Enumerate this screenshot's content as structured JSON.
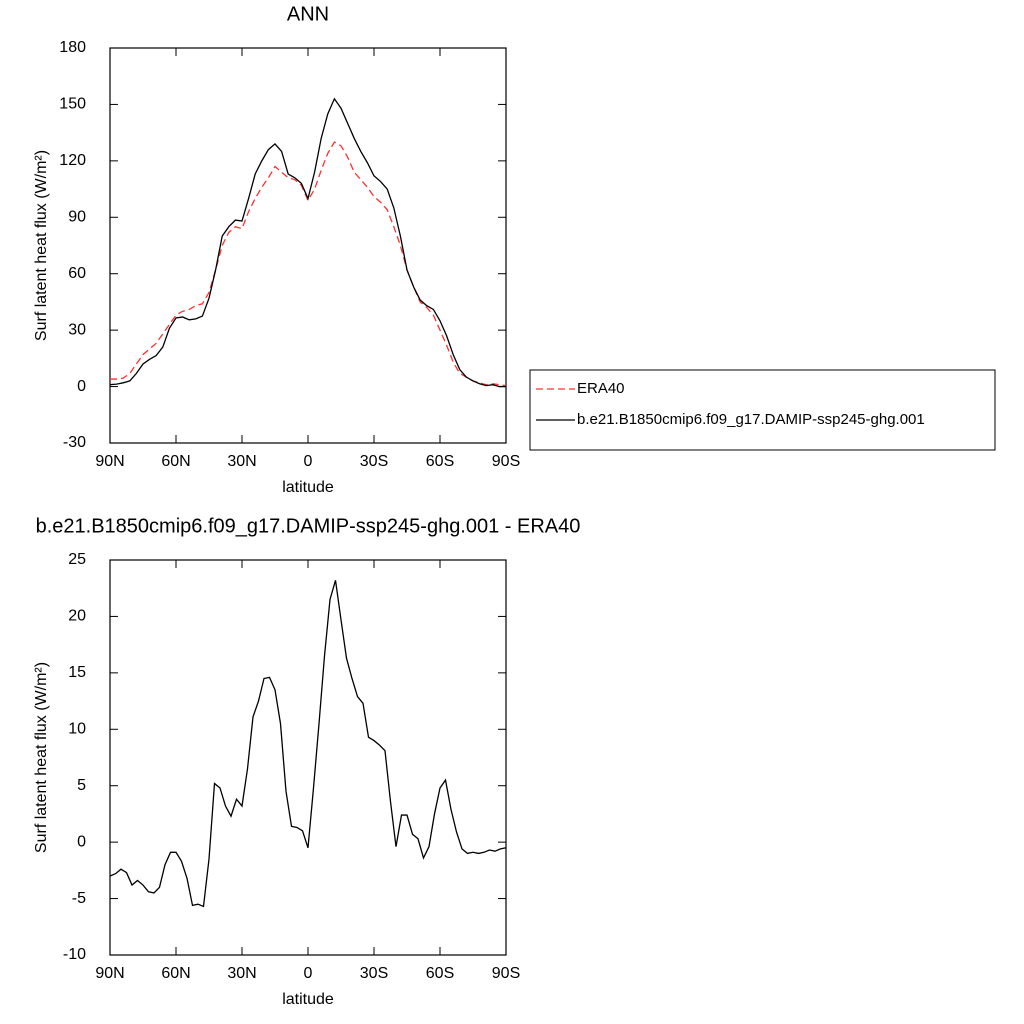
{
  "chart_data": [
    {
      "type": "line",
      "title": "ANN",
      "xlabel": "latitude",
      "ylabel": "Surf latent heat flux (W/m²)",
      "x": [
        90,
        87,
        84,
        81,
        78,
        75,
        72,
        69,
        66,
        63,
        60,
        57,
        54,
        51,
        48,
        45,
        42,
        39,
        36,
        33,
        30,
        27,
        24,
        21,
        18,
        15,
        12,
        9,
        6,
        3,
        0,
        -3,
        -6,
        -9,
        -12,
        -15,
        -18,
        -21,
        -24,
        -27,
        -30,
        -33,
        -36,
        -39,
        -42,
        -45,
        -48,
        -51,
        -54,
        -57,
        -60,
        -63,
        -66,
        -69,
        -72,
        -75,
        -78,
        -81,
        -84,
        -87,
        -90
      ],
      "series": [
        {
          "name": "ERA40",
          "color": "#ff3030",
          "linestyle": "dashed",
          "values": [
            4,
            4,
            4.5,
            7,
            12,
            17,
            20,
            23,
            28,
            33,
            38,
            40,
            41,
            43,
            44,
            50,
            62,
            75,
            82,
            85,
            84,
            93,
            100,
            106,
            111,
            117,
            114,
            111,
            110,
            107,
            99,
            105,
            115,
            124,
            130,
            128,
            122,
            114,
            110,
            106,
            101,
            98,
            94,
            85,
            75,
            62,
            53,
            45,
            42,
            38,
            30,
            22,
            13,
            7,
            5,
            3,
            2,
            1,
            1.5,
            1,
            0.5
          ]
        },
        {
          "name": "b.e21.B1850cmip6.f09_g17.DAMIP-ssp245-ghg.001",
          "color": "#000000",
          "linestyle": "solid",
          "values": [
            1,
            1.3,
            2,
            3,
            7,
            12,
            14.5,
            16.5,
            21,
            31,
            36.5,
            37,
            35.5,
            36,
            37.5,
            47,
            62,
            80,
            85,
            88.5,
            88,
            100,
            113,
            120,
            126,
            129,
            125,
            113,
            111,
            108,
            100,
            114,
            132,
            145,
            153,
            148,
            140,
            132,
            125,
            119,
            112,
            109,
            105,
            95,
            80,
            62,
            53,
            46,
            43,
            41,
            35,
            27,
            17,
            9,
            5,
            3,
            1.5,
            0.5,
            1,
            0,
            0
          ]
        }
      ],
      "xlim": [
        90,
        -90
      ],
      "xticks": [
        {
          "value": 90,
          "label": "90N"
        },
        {
          "value": 60,
          "label": "60N"
        },
        {
          "value": 30,
          "label": "30N"
        },
        0,
        {
          "value": -30,
          "label": "30S"
        },
        {
          "value": -60,
          "label": "60S"
        },
        {
          "value": -90,
          "label": "90S"
        }
      ],
      "ylim": [
        -30,
        180
      ],
      "yticks": [
        -30,
        0,
        30,
        60,
        90,
        120,
        150,
        180
      ],
      "grid": false,
      "legend": "right"
    },
    {
      "type": "line",
      "title": "b.e21.B1850cmip6.f09_g17.DAMIP-ssp245-ghg.001 - ERA40",
      "xlabel": "latitude",
      "ylabel": "Surf latent heat flux (W/m²)",
      "x": [
        90,
        87.5,
        85,
        82.5,
        80,
        77.5,
        75,
        72.5,
        70,
        67.5,
        65,
        62.5,
        60,
        57.5,
        55,
        52.5,
        50,
        47.5,
        45,
        42.5,
        40,
        37.5,
        35,
        32.5,
        30,
        27.5,
        25,
        22.5,
        20,
        17.5,
        15,
        12.5,
        10,
        7.5,
        5,
        2.5,
        0,
        -2.5,
        -5,
        -7.5,
        -10,
        -12.5,
        -15,
        -17.5,
        -20,
        -22.5,
        -25,
        -27.5,
        -30,
        -32.5,
        -35,
        -37.5,
        -40,
        -42.5,
        -45,
        -47.5,
        -50,
        -52.5,
        -55,
        -57.5,
        -60,
        -62.5,
        -65,
        -67.5,
        -70,
        -72.5,
        -75,
        -77.5,
        -80,
        -82.5,
        -85,
        -87.5,
        -90
      ],
      "color": "#000000",
      "values": [
        -3,
        -2.8,
        -2.4,
        -2.7,
        -3.8,
        -3.4,
        -3.8,
        -4.4,
        -4.5,
        -4,
        -2,
        -0.9,
        -0.9,
        -1.7,
        -3.2,
        -5.6,
        -5.5,
        -5.7,
        -1.5,
        5.2,
        4.8,
        3.2,
        2.3,
        3.8,
        3.2,
        6.5,
        11.1,
        12.5,
        14.5,
        14.6,
        13.5,
        10.5,
        4.5,
        1.4,
        1.3,
        1,
        -0.5,
        4.8,
        10.5,
        16.5,
        21.5,
        23.2,
        19.7,
        16.3,
        14.5,
        12.9,
        12.3,
        9.3,
        9,
        8.6,
        8.1,
        3.6,
        -0.4,
        2.4,
        2.4,
        0.7,
        0.3,
        -1.4,
        -0.4,
        2.5,
        4.8,
        5.5,
        2.9,
        0.9,
        -0.6,
        -1,
        -0.9,
        -1,
        -0.9,
        -0.7,
        -0.8,
        -0.6,
        -0.5
      ],
      "xlim": [
        90,
        -90
      ],
      "xticks": [
        {
          "value": 90,
          "label": "90N"
        },
        {
          "value": 60,
          "label": "60N"
        },
        {
          "value": 30,
          "label": "30N"
        },
        0,
        {
          "value": -30,
          "label": "30S"
        },
        {
          "value": -60,
          "label": "60S"
        },
        {
          "value": -90,
          "label": "90S"
        }
      ],
      "ylim": [
        -10,
        25
      ],
      "yticks": [
        -10,
        -5,
        0,
        5,
        10,
        15,
        20,
        25
      ],
      "grid": false
    }
  ]
}
